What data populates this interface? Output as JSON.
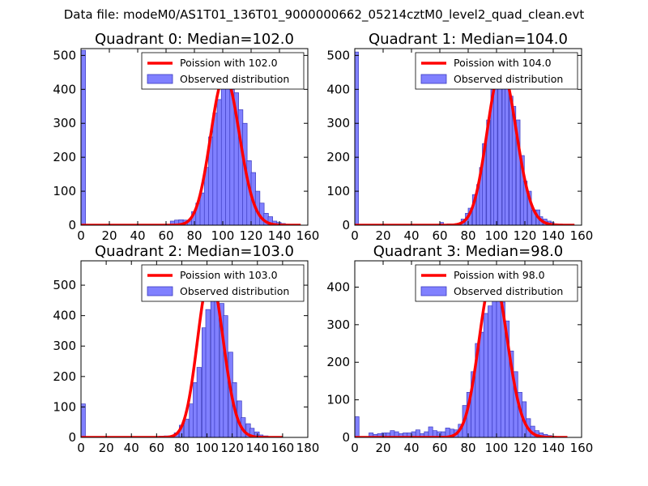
{
  "figure": {
    "title": "Data file: modeM0/AS1T01_136T01_9000000662_05214cztM0_level2_quad_clean.evt"
  },
  "colors": {
    "bars": "#8080ff",
    "bar_edge": "#3a3ac0",
    "curve": "#ff0000"
  },
  "chart_data": [
    {
      "type": "bar",
      "title": "Quadrant 0: Median=102.0",
      "xlabel": "",
      "ylabel": "",
      "xlim": [
        0,
        160
      ],
      "ylim": [
        0,
        520
      ],
      "xticks": [
        0,
        20,
        40,
        60,
        80,
        100,
        120,
        140,
        160
      ],
      "yticks": [
        0,
        100,
        200,
        300,
        400,
        500
      ],
      "legend": {
        "position": "top-right",
        "line_label": "Poission with 102.0",
        "bar_label": "Observed distribution"
      },
      "poisson_mean": 102.0,
      "curve_xmax": 155,
      "bin_width": 3.2,
      "bins": [
        [
          0,
          515
        ],
        [
          60,
          3
        ],
        [
          63,
          12
        ],
        [
          66,
          15
        ],
        [
          69,
          16
        ],
        [
          72,
          15
        ],
        [
          75,
          12
        ],
        [
          78,
          40
        ],
        [
          81,
          65
        ],
        [
          84,
          95
        ],
        [
          87,
          170
        ],
        [
          90,
          260
        ],
        [
          93,
          330
        ],
        [
          96,
          370
        ],
        [
          99,
          420
        ],
        [
          102,
          440
        ],
        [
          105,
          400
        ],
        [
          108,
          390
        ],
        [
          111,
          340
        ],
        [
          114,
          300
        ],
        [
          117,
          190
        ],
        [
          120,
          155
        ],
        [
          123,
          100
        ],
        [
          126,
          65
        ],
        [
          129,
          35
        ],
        [
          132,
          25
        ],
        [
          135,
          12
        ],
        [
          138,
          8
        ],
        [
          141,
          5
        ],
        [
          144,
          3
        ]
      ]
    },
    {
      "type": "bar",
      "title": "Quadrant 1: Median=104.0",
      "xlabel": "",
      "ylabel": "",
      "xlim": [
        0,
        160
      ],
      "ylim": [
        0,
        520
      ],
      "xticks": [
        0,
        20,
        40,
        60,
        80,
        100,
        120,
        140,
        160
      ],
      "yticks": [
        0,
        100,
        200,
        300,
        400,
        500
      ],
      "legend": {
        "position": "top-right",
        "line_label": "Poission with 104.0",
        "bar_label": "Observed distribution"
      },
      "poisson_mean": 104.0,
      "curve_xmax": 155,
      "bin_width": 2.6,
      "bins": [
        [
          0,
          510
        ],
        [
          60,
          8
        ],
        [
          65,
          4
        ],
        [
          70,
          4
        ],
        [
          75,
          18
        ],
        [
          78,
          35
        ],
        [
          80,
          50
        ],
        [
          83,
          90
        ],
        [
          86,
          120
        ],
        [
          88,
          170
        ],
        [
          90,
          240
        ],
        [
          93,
          310
        ],
        [
          96,
          400
        ],
        [
          98,
          440
        ],
        [
          101,
          460
        ],
        [
          104,
          450
        ],
        [
          106,
          440
        ],
        [
          109,
          380
        ],
        [
          111,
          350
        ],
        [
          114,
          310
        ],
        [
          117,
          205
        ],
        [
          119,
          130
        ],
        [
          122,
          100
        ],
        [
          125,
          45
        ],
        [
          128,
          45
        ],
        [
          130,
          25
        ],
        [
          133,
          18
        ],
        [
          136,
          12
        ],
        [
          138,
          8
        ],
        [
          141,
          4
        ],
        [
          144,
          3
        ]
      ]
    },
    {
      "type": "bar",
      "title": "Quadrant 2: Median=103.0",
      "xlabel": "",
      "ylabel": "",
      "xlim": [
        0,
        180
      ],
      "ylim": [
        0,
        580
      ],
      "xticks": [
        0,
        20,
        40,
        60,
        80,
        100,
        120,
        140,
        160,
        180
      ],
      "yticks": [
        0,
        100,
        200,
        300,
        400,
        500
      ],
      "legend": {
        "position": "top-right",
        "line_label": "Poission with 103.0",
        "bar_label": "Observed distribution"
      },
      "poisson_mean": 103.0,
      "curve_xmax": 160,
      "bin_width": 3.5,
      "bins": [
        [
          0,
          110
        ],
        [
          62,
          4
        ],
        [
          66,
          5
        ],
        [
          70,
          4
        ],
        [
          74,
          15
        ],
        [
          78,
          40
        ],
        [
          82,
          60
        ],
        [
          86,
          110
        ],
        [
          89,
          180
        ],
        [
          92,
          230
        ],
        [
          96,
          360
        ],
        [
          99,
          420
        ],
        [
          103,
          530
        ],
        [
          106,
          470
        ],
        [
          110,
          440
        ],
        [
          113,
          400
        ],
        [
          117,
          280
        ],
        [
          120,
          180
        ],
        [
          124,
          120
        ],
        [
          127,
          65
        ],
        [
          131,
          45
        ],
        [
          134,
          30
        ],
        [
          138,
          18
        ],
        [
          141,
          8
        ],
        [
          145,
          5
        ]
      ]
    },
    {
      "type": "bar",
      "title": "Quadrant 3: Median=98.0",
      "xlabel": "",
      "ylabel": "",
      "xlim": [
        0,
        160
      ],
      "ylim": [
        0,
        470
      ],
      "xticks": [
        0,
        20,
        40,
        60,
        80,
        100,
        120,
        140,
        160
      ],
      "yticks": [
        0,
        100,
        200,
        300,
        400
      ],
      "legend": {
        "position": "top-right",
        "line_label": "Poission with 98.0",
        "bar_label": "Observed distribution"
      },
      "poisson_mean": 98.0,
      "curve_xmax": 150,
      "bin_width": 3.0,
      "bins": [
        [
          0,
          55
        ],
        [
          10,
          12
        ],
        [
          13,
          8
        ],
        [
          16,
          10
        ],
        [
          19,
          12
        ],
        [
          22,
          12
        ],
        [
          25,
          18
        ],
        [
          28,
          15
        ],
        [
          31,
          10
        ],
        [
          34,
          12
        ],
        [
          37,
          12
        ],
        [
          40,
          15
        ],
        [
          43,
          20
        ],
        [
          46,
          10
        ],
        [
          49,
          15
        ],
        [
          52,
          28
        ],
        [
          55,
          18
        ],
        [
          58,
          15
        ],
        [
          61,
          15
        ],
        [
          64,
          25
        ],
        [
          67,
          22
        ],
        [
          70,
          20
        ],
        [
          73,
          35
        ],
        [
          76,
          85
        ],
        [
          79,
          120
        ],
        [
          82,
          175
        ],
        [
          85,
          250
        ],
        [
          88,
          280
        ],
        [
          91,
          330
        ],
        [
          94,
          350
        ],
        [
          97,
          420
        ],
        [
          100,
          430
        ],
        [
          103,
          360
        ],
        [
          106,
          310
        ],
        [
          109,
          230
        ],
        [
          112,
          175
        ],
        [
          115,
          120
        ],
        [
          118,
          95
        ],
        [
          121,
          50
        ],
        [
          124,
          30
        ],
        [
          127,
          18
        ],
        [
          130,
          12
        ],
        [
          133,
          8
        ],
        [
          136,
          5
        ],
        [
          139,
          3
        ]
      ]
    }
  ]
}
